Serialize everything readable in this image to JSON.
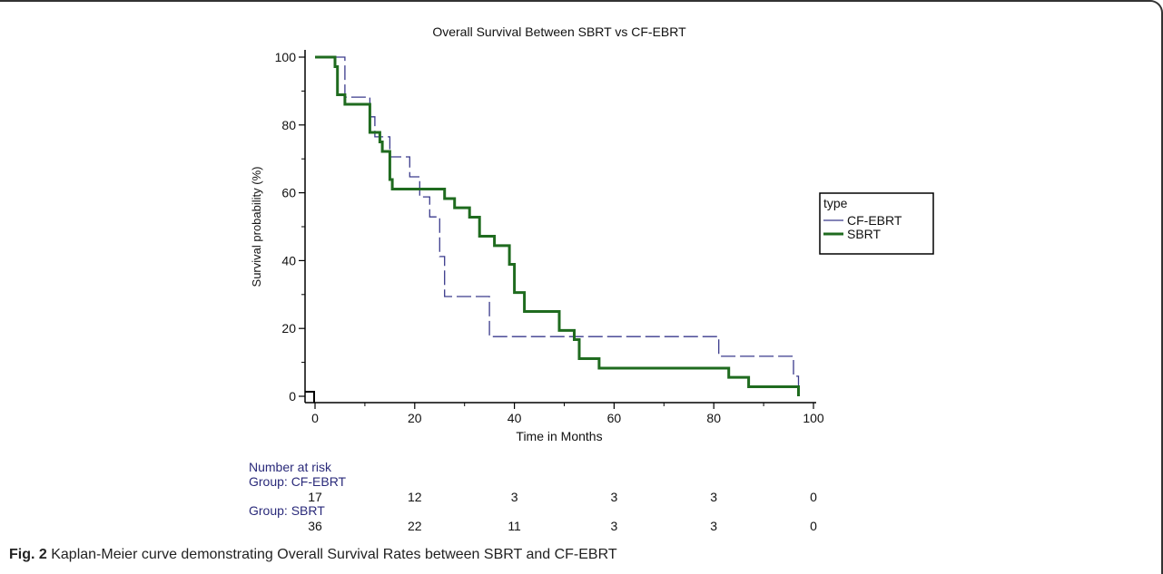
{
  "caption": {
    "label": "Fig. 2",
    "text": "Kaplan-Meier curve demonstrating Overall Survival Rates between SBRT and CF-EBRT"
  },
  "chart_data": {
    "type": "line",
    "title": "Overall Survival Between SBRT vs CF-EBRT",
    "xlabel": "Time in Months",
    "ylabel": "Survival probability (%)",
    "xlim": [
      0,
      100
    ],
    "ylim": [
      0,
      100
    ],
    "xticks": [
      0,
      20,
      40,
      60,
      80,
      100
    ],
    "yticks": [
      0,
      20,
      40,
      60,
      80,
      100
    ],
    "grid": false,
    "legend": {
      "title": "type",
      "position": "right"
    },
    "series": [
      {
        "name": "CF-EBRT",
        "color": "#3a3a8c",
        "style": "dashed",
        "steps": [
          [
            0,
            100
          ],
          [
            6,
            100
          ],
          [
            6,
            88.2
          ],
          [
            11,
            88.2
          ],
          [
            11,
            82.4
          ],
          [
            12,
            82.4
          ],
          [
            12,
            76.5
          ],
          [
            15,
            76.5
          ],
          [
            15,
            70.6
          ],
          [
            19,
            70.6
          ],
          [
            19,
            64.7
          ],
          [
            21,
            64.7
          ],
          [
            21,
            58.8
          ],
          [
            23,
            58.8
          ],
          [
            23,
            52.9
          ],
          [
            25,
            52.9
          ],
          [
            25,
            41.2
          ],
          [
            26,
            41.2
          ],
          [
            26,
            29.4
          ],
          [
            35,
            29.4
          ],
          [
            35,
            17.6
          ],
          [
            81,
            17.6
          ],
          [
            81,
            11.8
          ],
          [
            96,
            11.8
          ],
          [
            96,
            5.9
          ],
          [
            97,
            5.9
          ],
          [
            97,
            0
          ]
        ]
      },
      {
        "name": "SBRT",
        "color": "#1f6b1f",
        "style": "solid",
        "steps": [
          [
            0,
            100
          ],
          [
            4,
            100
          ],
          [
            4,
            97.2
          ],
          [
            4.5,
            97.2
          ],
          [
            4.5,
            88.9
          ],
          [
            6,
            88.9
          ],
          [
            6,
            86.1
          ],
          [
            11,
            86.1
          ],
          [
            11,
            77.8
          ],
          [
            13,
            77.8
          ],
          [
            13,
            75
          ],
          [
            13.5,
            75
          ],
          [
            13.5,
            72.2
          ],
          [
            15,
            72.2
          ],
          [
            15,
            63.9
          ],
          [
            15.5,
            63.9
          ],
          [
            15.5,
            61.1
          ],
          [
            26,
            61.1
          ],
          [
            26,
            58.3
          ],
          [
            28,
            58.3
          ],
          [
            28,
            55.6
          ],
          [
            31,
            55.6
          ],
          [
            31,
            52.8
          ],
          [
            33,
            52.8
          ],
          [
            33,
            47.2
          ],
          [
            36,
            47.2
          ],
          [
            36,
            44.4
          ],
          [
            39,
            44.4
          ],
          [
            39,
            38.9
          ],
          [
            40,
            38.9
          ],
          [
            40,
            30.6
          ],
          [
            42,
            30.6
          ],
          [
            42,
            25
          ],
          [
            49,
            25
          ],
          [
            49,
            19.4
          ],
          [
            52,
            19.4
          ],
          [
            52,
            16.7
          ],
          [
            53,
            16.7
          ],
          [
            53,
            11.1
          ],
          [
            57,
            11.1
          ],
          [
            57,
            8.3
          ],
          [
            83,
            8.3
          ],
          [
            83,
            5.6
          ],
          [
            87,
            5.6
          ],
          [
            87,
            2.8
          ],
          [
            97,
            2.8
          ],
          [
            97,
            0
          ]
        ]
      }
    ],
    "risk_table": {
      "heading": "Number at risk",
      "times": [
        0,
        20,
        40,
        60,
        80,
        100
      ],
      "groups": [
        {
          "label": "Group: CF-EBRT",
          "counts": [
            17,
            12,
            3,
            3,
            3,
            0
          ]
        },
        {
          "label": "Group: SBRT",
          "counts": [
            36,
            22,
            11,
            3,
            3,
            0
          ]
        }
      ]
    }
  }
}
